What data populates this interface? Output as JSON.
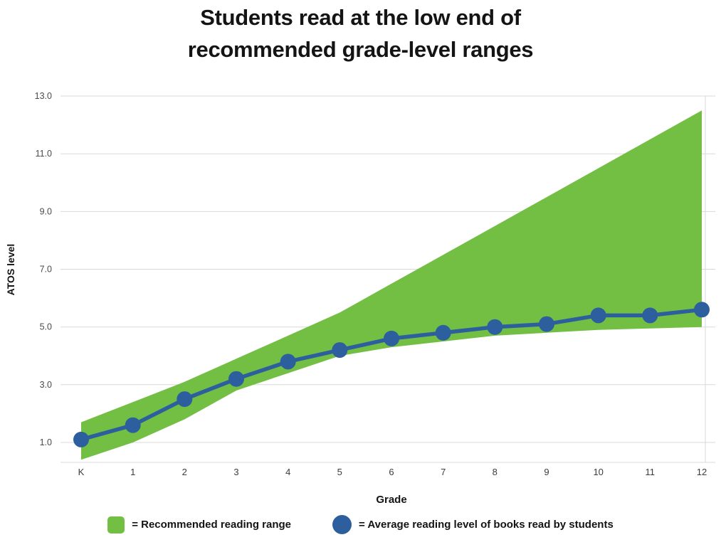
{
  "title": "Students read at the low end of recommended grade-level ranges",
  "legend": [
    {
      "swatch": "square",
      "color": "#72bf44",
      "label": "= Recommended reading range"
    },
    {
      "swatch": "circle",
      "color": "#2d5f9e",
      "label": "= Average reading level of books read by students"
    }
  ],
  "chart_data": {
    "type": "area",
    "title": "Students read at the low end of recommended grade-level ranges",
    "xlabel": "Grade",
    "ylabel": "ATOS level",
    "categories": [
      "K",
      "1",
      "2",
      "3",
      "4",
      "5",
      "6",
      "7",
      "8",
      "9",
      "10",
      "11",
      "12"
    ],
    "y_ticks": [
      1.0,
      3.0,
      5.0,
      7.0,
      9.0,
      11.0,
      13.0
    ],
    "ylim": [
      0.3,
      13.0
    ],
    "grid": true,
    "legend_position": "bottom",
    "series": [
      {
        "name": "Recommended reading range (lower bound)",
        "values": [
          0.4,
          1.0,
          1.8,
          2.8,
          3.4,
          4.0,
          4.3,
          4.5,
          4.7,
          4.8,
          4.9,
          4.95,
          5.0
        ]
      },
      {
        "name": "Recommended reading range (upper bound)",
        "values": [
          1.7,
          2.4,
          3.1,
          3.9,
          4.7,
          5.5,
          6.5,
          7.5,
          8.5,
          9.5,
          10.5,
          11.5,
          12.5
        ]
      },
      {
        "name": "Average reading level of books read by students",
        "values": [
          1.1,
          1.6,
          2.5,
          3.2,
          3.8,
          4.2,
          4.6,
          4.8,
          5.0,
          5.1,
          5.4,
          5.4,
          5.6
        ]
      }
    ],
    "colors": {
      "band": "#72bf44",
      "line": "#2d5f9e",
      "grid": "#d9d9d9",
      "tick_text": "#4a4a4a",
      "axis_title_text": "#141414"
    }
  }
}
